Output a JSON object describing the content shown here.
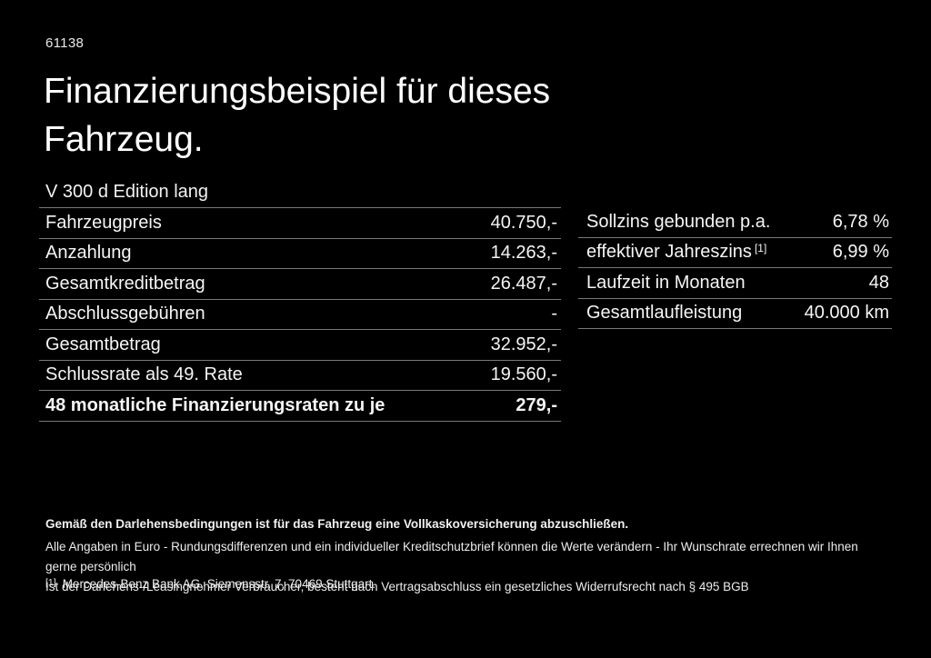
{
  "page": {
    "id_number": "61138",
    "title": "Finanzierungsbeispiel für dieses Fahrzeug.",
    "vehicle_model": "V 300 d Edition lang"
  },
  "finance_table": {
    "rows": [
      {
        "label": "Fahrzeugpreis",
        "value": "40.750,-"
      },
      {
        "label": "Anzahlung",
        "value": "14.263,-"
      },
      {
        "label": "Gesamtkreditbetrag",
        "value": "26.487,-"
      },
      {
        "label": "Abschlussgebühren",
        "value": "-"
      },
      {
        "label": "Gesamtbetrag",
        "value": "32.952,-"
      },
      {
        "label": "Schlussrate als 49. Rate",
        "value": "19.560,-"
      },
      {
        "label": "48 monatliche Finanzierungsraten zu je",
        "value": "279,-"
      }
    ]
  },
  "conditions_table": {
    "rows": [
      {
        "label": "Sollzins gebunden p.a.",
        "value": "6,78 %"
      },
      {
        "label": "effektiver Jahreszins",
        "sup": "[1]",
        "value": "6,99 %"
      },
      {
        "label": "Laufzeit in Monaten",
        "value": "48"
      },
      {
        "label": "Gesamtlaufleistung",
        "value": "40.000 km"
      }
    ]
  },
  "disclaimer": {
    "bold_line": "Gemäß den Darlehensbedingungen ist für das Fahrzeug eine Vollkaskoversicherung abzuschließen.",
    "line1": "Alle Angaben in Euro - Rundungsdifferenzen und ein individueller Kreditschutzbrief können die Werte verändern - Ihr Wunschrate errechnen wir Ihnen gerne persönlich",
    "line2": "Ist der Darlehens-/Leasingnehmer Verbraucher, besteht nach Vertragsabschluss ein gesetzliches Widerrufsrecht nach § 495 BGB"
  },
  "footnote": {
    "marker": "[1]",
    "text": "Mercedes-Benz Bank AG, Siemensstr. 7, 70469 Stuttgart."
  },
  "colors": {
    "background": "#000000",
    "text": "#f5f5f5",
    "divider": "#787878"
  }
}
